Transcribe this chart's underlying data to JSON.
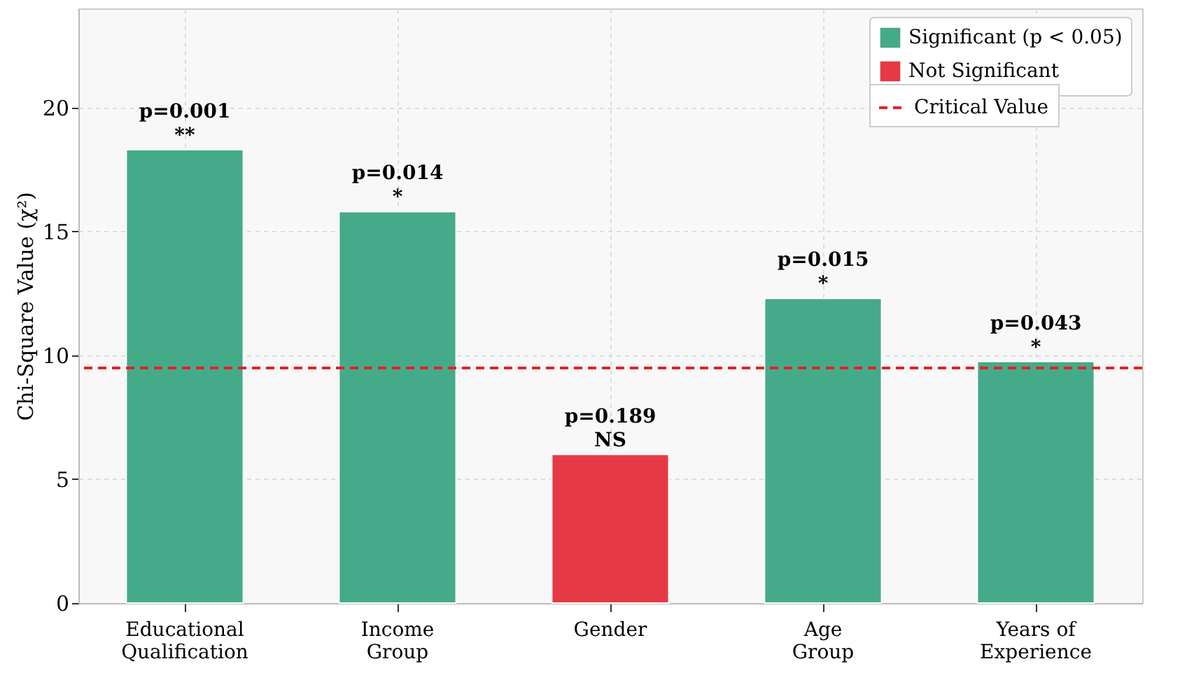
{
  "chart_data": {
    "type": "bar",
    "categories": [
      "Educational Qualification",
      "Income Group",
      "Gender",
      "Age Group",
      "Years of Experience"
    ],
    "series": [
      {
        "name": "Significant (p < 0.05)",
        "color": "#45aa89",
        "values": [
          18.3,
          15.8,
          null,
          12.3,
          9.75
        ]
      },
      {
        "name": "Not Significant",
        "color": "#e63946",
        "values": [
          null,
          null,
          6.0,
          null,
          null
        ]
      }
    ],
    "ylabel": "Chi-Square Value (χ²)",
    "ylim": [
      0,
      24
    ],
    "yticks": [
      0,
      5,
      10,
      15,
      20
    ],
    "ref_lines": [
      {
        "axis": "y",
        "value": 9.49,
        "label": "Critical Value",
        "color": "#e62222",
        "line_style": "dashed"
      }
    ],
    "annotations": [
      {
        "text": "p=0.001\n**",
        "x": "Educational Qualification",
        "y": 18.3
      },
      {
        "text": "p=0.014\n*",
        "x": "Income Group",
        "y": 15.8
      },
      {
        "text": "p=0.189\nNS",
        "x": "Gender",
        "y": 6.0
      },
      {
        "text": "p=0.015\n*",
        "x": "Age Group",
        "y": 12.3
      },
      {
        "text": "p=0.043\n*",
        "x": "Years of Experience",
        "y": 9.75
      }
    ],
    "grid": true,
    "legend": "top right"
  }
}
